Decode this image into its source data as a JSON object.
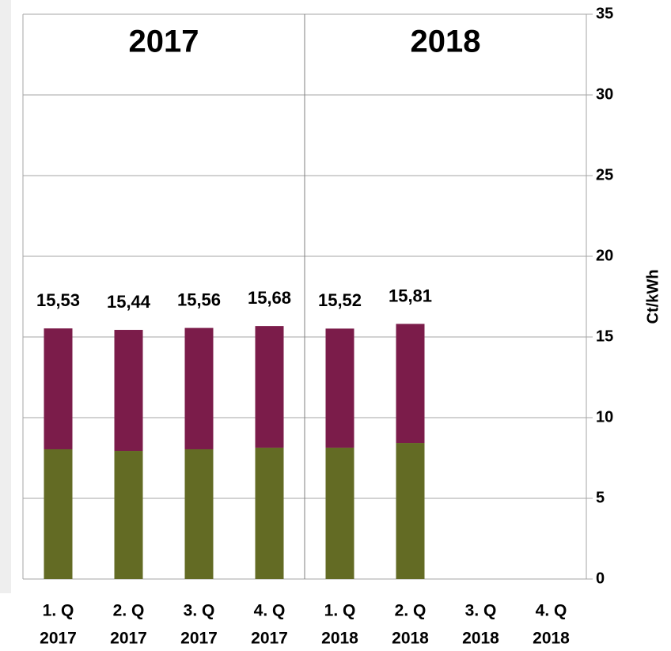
{
  "chart_data": {
    "type": "stacked_bar",
    "y_axis_label": "Ct/kWh",
    "year_labels": [
      "2017",
      "2018"
    ],
    "categories": [
      [
        "1. Q",
        "2017"
      ],
      [
        "2. Q",
        "2017"
      ],
      [
        "3. Q",
        "2017"
      ],
      [
        "4. Q",
        "2017"
      ],
      [
        "1. Q",
        "2018"
      ],
      [
        "2. Q",
        "2018"
      ],
      [
        "3. Q",
        "2018"
      ],
      [
        "4. Q",
        "2018"
      ]
    ],
    "series": [
      {
        "color": "#636b24",
        "values": [
          8.04,
          7.94,
          8.04,
          8.14,
          8.14,
          8.43,
          null,
          null
        ]
      },
      {
        "color": "#7b1c4a",
        "values": [
          7.49,
          7.5,
          7.52,
          7.54,
          7.38,
          7.38,
          null,
          null
        ]
      }
    ],
    "totals": {
      "values": [
        15.53,
        15.44,
        15.56,
        15.68,
        15.52,
        15.81,
        null,
        null
      ],
      "value_labels": [
        "15,53",
        "15,44",
        "15,56",
        "15,68",
        "15,52",
        "15,81",
        null,
        null
      ]
    },
    "ylim": [
      0,
      35
    ],
    "yticks": [
      0,
      5,
      10,
      15,
      20,
      25,
      30,
      35
    ],
    "grid": true,
    "y_axis_side": "right"
  }
}
